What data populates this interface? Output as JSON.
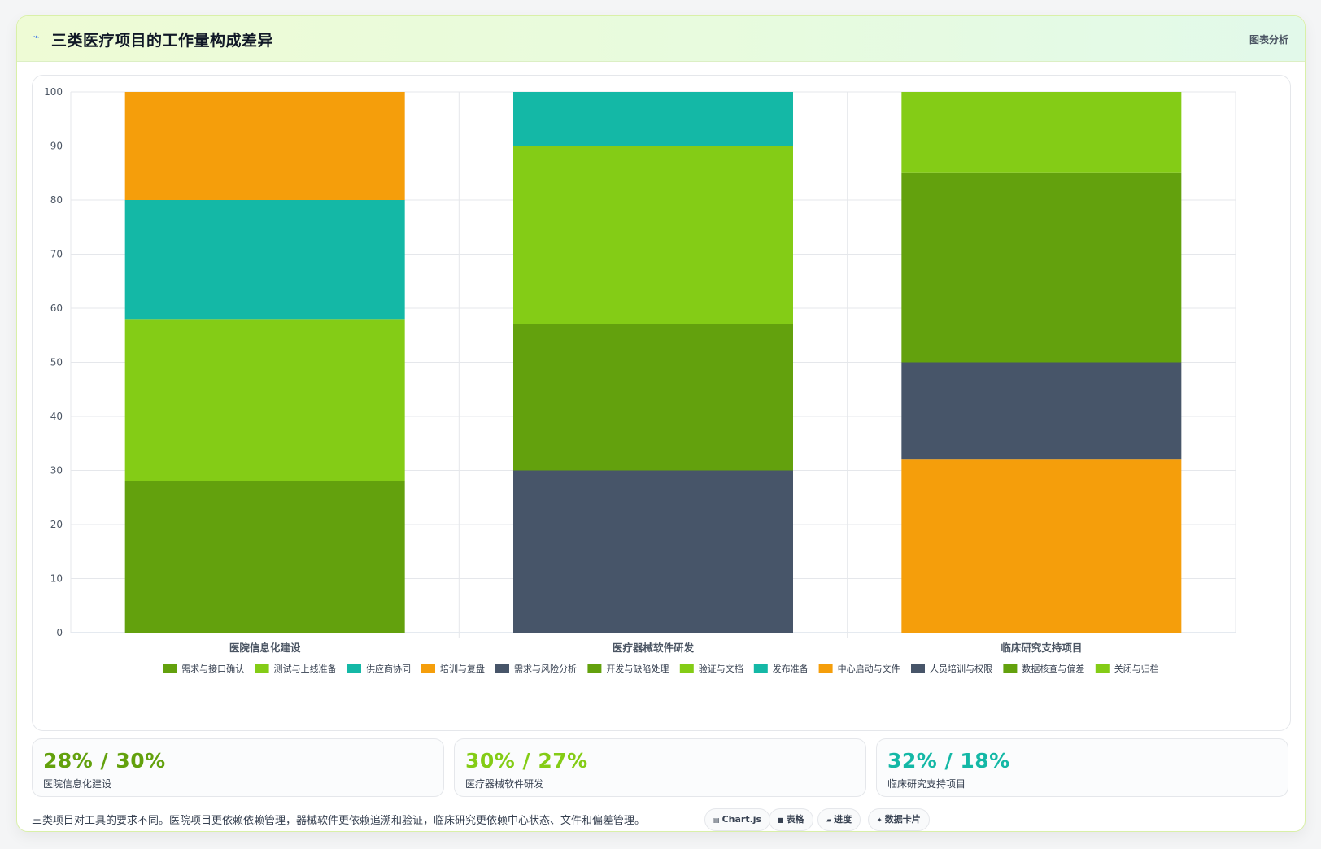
{
  "header": {
    "title": "三类医疗项目的工作量构成差异",
    "tag": "图表分析",
    "icon": "lightning-icon"
  },
  "colors": {
    "dark_green": "#63a10d",
    "light_green": "#84cc16",
    "teal": "#14b8a6",
    "orange": "#f59e0b",
    "slate": "#475569"
  },
  "chart_data": {
    "type": "bar",
    "stacked": true,
    "title": "",
    "xlabel": "",
    "ylabel": "",
    "ylim": [
      0,
      100
    ],
    "yticks": [
      0,
      10,
      20,
      30,
      40,
      50,
      60,
      70,
      80,
      90,
      100
    ],
    "grid": true,
    "legend_position": "bottom",
    "categories": [
      "医院信息化建设",
      "医疗器械软件研发",
      "临床研究支持项目"
    ],
    "series": [
      {
        "name": "需求与接口确认",
        "color": "#63a10d",
        "values": [
          28,
          0,
          0
        ]
      },
      {
        "name": "测试与上线准备",
        "color": "#84cc16",
        "values": [
          30,
          0,
          0
        ]
      },
      {
        "name": "供应商协同",
        "color": "#14b8a6",
        "values": [
          22,
          0,
          0
        ]
      },
      {
        "name": "培训与复盘",
        "color": "#f59e0b",
        "values": [
          20,
          0,
          0
        ]
      },
      {
        "name": "需求与风险分析",
        "color": "#475569",
        "values": [
          0,
          30,
          0
        ]
      },
      {
        "name": "开发与缺陷处理",
        "color": "#63a10d",
        "values": [
          0,
          27,
          0
        ]
      },
      {
        "name": "验证与文档",
        "color": "#84cc16",
        "values": [
          0,
          33,
          0
        ]
      },
      {
        "name": "发布准备",
        "color": "#14b8a6",
        "values": [
          0,
          10,
          0
        ]
      },
      {
        "name": "中心启动与文件",
        "color": "#f59e0b",
        "values": [
          0,
          0,
          32
        ]
      },
      {
        "name": "人员培训与权限",
        "color": "#475569",
        "values": [
          0,
          0,
          18
        ]
      },
      {
        "name": "数据核查与偏差",
        "color": "#63a10d",
        "values": [
          0,
          0,
          35
        ]
      },
      {
        "name": "关闭与归档",
        "color": "#84cc16",
        "values": [
          0,
          0,
          15
        ]
      }
    ]
  },
  "stats": [
    {
      "value": "28% / 30%",
      "label": "医院信息化建设",
      "color": "#63a10d"
    },
    {
      "value": "30% / 27%",
      "label": "医疗器械软件研发",
      "color": "#84cc16"
    },
    {
      "value": "32% / 18%",
      "label": "临床研究支持项目",
      "color": "#14b8a6"
    }
  ],
  "summary": "三类项目对工具的要求不同。医院项目更依赖依赖管理，器械软件更依赖追溯和验证，临床研究更依赖中心状态、文件和偏差管理。",
  "chips": [
    {
      "label": "Chart.js",
      "icon": "chart-icon"
    },
    {
      "label": "表格",
      "icon": "table-icon"
    },
    {
      "label": "进度",
      "icon": "progress-icon"
    },
    {
      "label": "数据卡片",
      "icon": "sparkle-icon"
    }
  ]
}
